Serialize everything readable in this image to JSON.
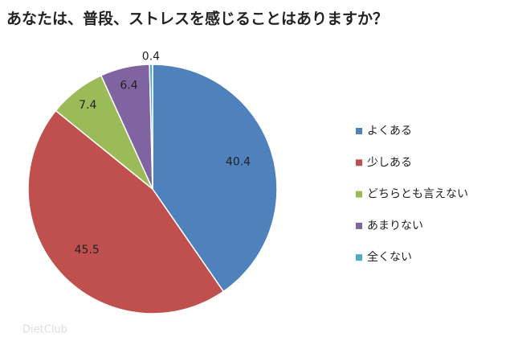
{
  "chart_data": {
    "type": "pie",
    "title": "あなたは、普段、ストレスを感じることはありますか？",
    "categories": [
      "よくある",
      "少しある",
      "どちらとも言えない",
      "あまりない",
      "全くない"
    ],
    "values": [
      40.4,
      45.5,
      7.4,
      6.4,
      0.4
    ],
    "colors": [
      "#4f81bd",
      "#c0504d",
      "#9bbb59",
      "#8064a2",
      "#4bacc6"
    ],
    "legend": "right"
  },
  "watermark": "DietClub"
}
